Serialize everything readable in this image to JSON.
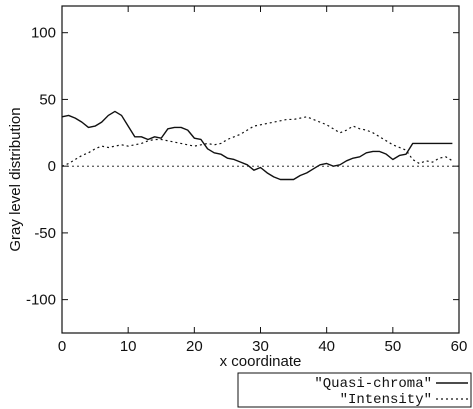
{
  "chart_data": {
    "type": "line",
    "xlabel": "x coordinate",
    "ylabel": "Gray level distribution",
    "xlim": [
      0,
      60
    ],
    "ylim": [
      -125,
      120
    ],
    "xticks": [
      0,
      10,
      20,
      30,
      40,
      50,
      60
    ],
    "yticks": [
      100,
      50,
      0,
      -50,
      -100
    ],
    "grid": false,
    "legend": "bottom-right",
    "reference_line": {
      "y": 0,
      "style": "dotted"
    },
    "series": [
      {
        "name": "\"Quasi-chroma\"",
        "style": "solid",
        "points": [
          [
            0,
            37
          ],
          [
            1,
            38
          ],
          [
            2,
            36
          ],
          [
            3,
            33
          ],
          [
            4,
            29
          ],
          [
            5,
            30
          ],
          [
            6,
            33
          ],
          [
            7,
            38
          ],
          [
            8,
            41
          ],
          [
            9,
            38
          ],
          [
            10,
            30
          ],
          [
            11,
            22
          ],
          [
            12,
            22
          ],
          [
            13,
            20
          ],
          [
            14,
            22
          ],
          [
            15,
            21
          ],
          [
            16,
            28
          ],
          [
            17,
            29
          ],
          [
            18,
            29
          ],
          [
            19,
            27
          ],
          [
            20,
            21
          ],
          [
            21,
            20
          ],
          [
            22,
            13
          ],
          [
            23,
            10
          ],
          [
            24,
            9
          ],
          [
            25,
            6
          ],
          [
            26,
            5
          ],
          [
            27,
            3
          ],
          [
            28,
            1
          ],
          [
            29,
            -3
          ],
          [
            30,
            -1
          ],
          [
            31,
            -5
          ],
          [
            32,
            -8
          ],
          [
            33,
            -10
          ],
          [
            34,
            -10
          ],
          [
            35,
            -10
          ],
          [
            36,
            -7
          ],
          [
            37,
            -5
          ],
          [
            38,
            -2
          ],
          [
            39,
            1
          ],
          [
            40,
            2
          ],
          [
            41,
            0
          ],
          [
            42,
            1
          ],
          [
            43,
            4
          ],
          [
            44,
            6
          ],
          [
            45,
            7
          ],
          [
            46,
            10
          ],
          [
            47,
            11
          ],
          [
            48,
            11
          ],
          [
            49,
            9
          ],
          [
            50,
            5
          ],
          [
            51,
            8
          ],
          [
            52,
            9
          ],
          [
            53,
            17
          ],
          [
            54,
            17
          ],
          [
            55,
            17
          ],
          [
            56,
            17
          ],
          [
            57,
            17
          ],
          [
            58,
            17
          ],
          [
            59,
            17
          ]
        ]
      },
      {
        "name": "\"Intensity\"",
        "style": "dotted",
        "points": [
          [
            0,
            0
          ],
          [
            1,
            2
          ],
          [
            2,
            5
          ],
          [
            3,
            8
          ],
          [
            4,
            10
          ],
          [
            5,
            13
          ],
          [
            6,
            15
          ],
          [
            7,
            14
          ],
          [
            8,
            15
          ],
          [
            9,
            16
          ],
          [
            10,
            15
          ],
          [
            11,
            16
          ],
          [
            12,
            17
          ],
          [
            13,
            19
          ],
          [
            14,
            20
          ],
          [
            15,
            20
          ],
          [
            16,
            19
          ],
          [
            17,
            18
          ],
          [
            18,
            17
          ],
          [
            19,
            16
          ],
          [
            20,
            15
          ],
          [
            21,
            16
          ],
          [
            22,
            17
          ],
          [
            23,
            16
          ],
          [
            24,
            17
          ],
          [
            25,
            20
          ],
          [
            26,
            22
          ],
          [
            27,
            24
          ],
          [
            28,
            27
          ],
          [
            29,
            30
          ],
          [
            30,
            31
          ],
          [
            31,
            32
          ],
          [
            32,
            33
          ],
          [
            33,
            34
          ],
          [
            34,
            35
          ],
          [
            35,
            35
          ],
          [
            36,
            36
          ],
          [
            37,
            37
          ],
          [
            38,
            35
          ],
          [
            39,
            33
          ],
          [
            40,
            31
          ],
          [
            41,
            28
          ],
          [
            42,
            25
          ],
          [
            43,
            27
          ],
          [
            44,
            30
          ],
          [
            45,
            28
          ],
          [
            46,
            27
          ],
          [
            47,
            25
          ],
          [
            48,
            22
          ],
          [
            49,
            19
          ],
          [
            50,
            16
          ],
          [
            51,
            14
          ],
          [
            52,
            12
          ],
          [
            53,
            5
          ],
          [
            54,
            2
          ],
          [
            55,
            4
          ],
          [
            56,
            3
          ],
          [
            57,
            6
          ],
          [
            58,
            7
          ],
          [
            59,
            4
          ]
        ]
      }
    ]
  }
}
